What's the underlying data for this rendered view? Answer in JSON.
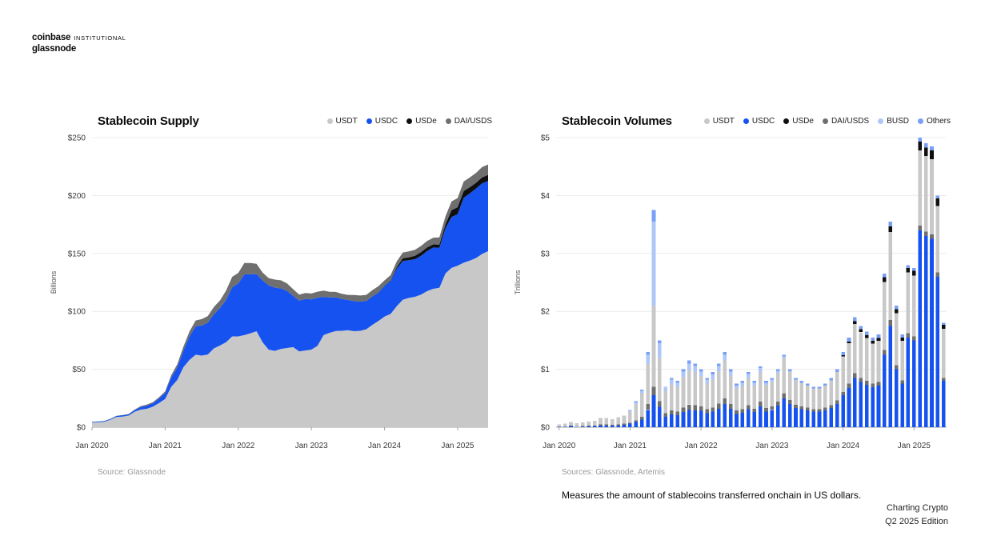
{
  "brand": {
    "line1_primary": "coinbase",
    "line1_secondary": "INSTITUTIONAL",
    "line2": "glassnode"
  },
  "edition": {
    "line1": "Charting Crypto",
    "line2": "Q2 2025 Edition"
  },
  "colors": {
    "USDT": "#c8c8c8",
    "USDC": "#1652f0",
    "USDe": "#0f0f0f",
    "DAI/USDS": "#6f6f6f",
    "BUSD": "#aec7f8",
    "Others": "#78a0f5",
    "grid": "#ececec",
    "zero_line": "#a3a3a3",
    "axis_text": "#3a3a3a",
    "source_text": "#9a9a9a"
  },
  "months": [
    "2020-01",
    "2020-02",
    "2020-03",
    "2020-04",
    "2020-05",
    "2020-06",
    "2020-07",
    "2020-08",
    "2020-09",
    "2020-10",
    "2020-11",
    "2020-12",
    "2021-01",
    "2021-02",
    "2021-03",
    "2021-04",
    "2021-05",
    "2021-06",
    "2021-07",
    "2021-08",
    "2021-09",
    "2021-10",
    "2021-11",
    "2021-12",
    "2022-01",
    "2022-02",
    "2022-03",
    "2022-04",
    "2022-05",
    "2022-06",
    "2022-07",
    "2022-08",
    "2022-09",
    "2022-10",
    "2022-11",
    "2022-12",
    "2023-01",
    "2023-02",
    "2023-03",
    "2023-04",
    "2023-05",
    "2023-06",
    "2023-07",
    "2023-08",
    "2023-09",
    "2023-10",
    "2023-11",
    "2023-12",
    "2024-01",
    "2024-02",
    "2024-03",
    "2024-04",
    "2024-05",
    "2024-06",
    "2024-07",
    "2024-08",
    "2024-09",
    "2024-10",
    "2024-11",
    "2024-12",
    "2025-01",
    "2025-02",
    "2025-03",
    "2025-04",
    "2025-05",
    "2025-06"
  ],
  "chart_data": [
    {
      "type": "area",
      "title": "Stablecoin Supply",
      "ylabel": "Billions",
      "source": "Source: Glassnode",
      "ylim": [
        0,
        250
      ],
      "yticks": [
        "$0",
        "$50",
        "$100",
        "$150",
        "$200",
        "$250"
      ],
      "xticks": [
        "Jan 2020",
        "Jan 2021",
        "Jan 2022",
        "Jan 2023",
        "Jan 2024",
        "Jan 2025"
      ],
      "x_key": "months",
      "x_interval": "monthly",
      "legend": [
        "USDT",
        "USDC",
        "USDe",
        "DAI/USDS"
      ],
      "stack_order": [
        "USDT",
        "USDC",
        "USDe",
        "DAI/USDS"
      ],
      "grid": true,
      "legend_position": "top-right",
      "series": [
        {
          "name": "USDT",
          "values": [
            4.0,
            4.3,
            4.6,
            6.4,
            8.8,
            9.2,
            10.0,
            13.4,
            15.2,
            15.9,
            17.8,
            20.9,
            24.4,
            34.9,
            40.8,
            51.8,
            58.1,
            62.6,
            61.8,
            62.8,
            68.0,
            70.5,
            73.4,
            78.4,
            78.4,
            79.5,
            81.1,
            82.9,
            73.3,
            66.9,
            65.9,
            67.6,
            68.4,
            69.1,
            65.4,
            66.2,
            67.0,
            70.3,
            79.5,
            81.5,
            83.1,
            83.2,
            83.8,
            82.9,
            83.2,
            84.5,
            88.3,
            91.7,
            95.5,
            97.8,
            104.4,
            110.1,
            111.6,
            112.6,
            114.4,
            117.5,
            119.5,
            120.3,
            132.8,
            137.5,
            139.4,
            142.0,
            143.8,
            146.0,
            149.5,
            152.0
          ]
        },
        {
          "name": "USDC",
          "values": [
            0.5,
            0.6,
            0.7,
            0.7,
            0.9,
            1.1,
            1.1,
            1.4,
            2.2,
            2.7,
            2.9,
            3.9,
            5.2,
            8.0,
            10.8,
            14.2,
            20.1,
            24.4,
            26.0,
            27.4,
            29.5,
            32.4,
            36.4,
            42.4,
            45.6,
            52.4,
            51.0,
            49.3,
            53.4,
            55.5,
            54.6,
            52.2,
            49.3,
            44.3,
            43.9,
            44.6,
            43.3,
            41.5,
            33.0,
            30.5,
            29.0,
            27.5,
            26.1,
            25.9,
            25.2,
            24.4,
            24.6,
            24.4,
            26.5,
            28.5,
            32.4,
            33.4,
            32.5,
            32.4,
            33.6,
            34.6,
            35.6,
            34.7,
            39.0,
            43.9,
            44.5,
            56.1,
            58.0,
            60.0,
            61.0,
            60.5
          ]
        },
        {
          "name": "USDe",
          "values": [
            0,
            0,
            0,
            0,
            0,
            0,
            0,
            0,
            0,
            0,
            0,
            0,
            0,
            0,
            0,
            0,
            0,
            0,
            0,
            0,
            0,
            0,
            0,
            0,
            0,
            0,
            0,
            0,
            0,
            0,
            0,
            0,
            0,
            0,
            0,
            0,
            0,
            0,
            0,
            0,
            0,
            0,
            0,
            0,
            0,
            0,
            0.1,
            0.3,
            0.3,
            0.4,
            1.4,
            2.3,
            2.6,
            3.0,
            3.2,
            3.1,
            2.7,
            2.7,
            3.3,
            5.9,
            6.0,
            5.8,
            5.4,
            4.9,
            5.2,
            5.3
          ]
        },
        {
          "name": "DAI/USDS",
          "values": [
            0.1,
            0.1,
            0.1,
            0.1,
            0.1,
            0.2,
            0.3,
            0.4,
            0.8,
            0.9,
            1.0,
            1.1,
            1.3,
            2.0,
            2.8,
            3.5,
            4.4,
            5.1,
            5.5,
            5.7,
            6.3,
            6.5,
            8.0,
            9.0,
            9.2,
            9.8,
            9.6,
            8.8,
            6.8,
            6.3,
            6.9,
            7.0,
            6.4,
            5.8,
            5.2,
            5.1,
            5.1,
            5.2,
            5.4,
            4.9,
            4.7,
            4.5,
            4.3,
            5.3,
            5.3,
            5.3,
            5.3,
            5.3,
            4.4,
            4.6,
            4.8,
            5.0,
            5.1,
            5.2,
            5.3,
            5.6,
            5.8,
            6.2,
            6.9,
            7.6,
            7.9,
            8.2,
            8.4,
            8.6,
            8.8,
            9.0
          ]
        }
      ]
    },
    {
      "type": "bar",
      "title": "Stablecoin Volumes",
      "ylabel": "Trillions",
      "source": "Sources: Glassnode, Artemis",
      "note": "Measures the amount of stablecoins transferred onchain in US dollars.",
      "ylim": [
        0,
        5
      ],
      "yticks": [
        "$0",
        "$1",
        "$2",
        "$3",
        "$4",
        "$5"
      ],
      "xticks": [
        "Jan 2020",
        "Jan 2021",
        "Jan 2022",
        "Jan 2023",
        "Jan 2024",
        "Jan 2025"
      ],
      "x_key": "months",
      "x_interval": "monthly",
      "legend": [
        "USDT",
        "USDC",
        "USDe",
        "DAI/USDS",
        "BUSD",
        "Others"
      ],
      "stack_order": [
        "USDC",
        "DAI/USDS",
        "USDT",
        "USDe",
        "BUSD",
        "Others"
      ],
      "grid": true,
      "legend_position": "top-right",
      "series": [
        {
          "name": "USDC",
          "values": [
            0.01,
            0.01,
            0.02,
            0.01,
            0.01,
            0.02,
            0.02,
            0.03,
            0.03,
            0.03,
            0.03,
            0.04,
            0.06,
            0.09,
            0.13,
            0.3,
            0.55,
            0.35,
            0.18,
            0.22,
            0.21,
            0.26,
            0.3,
            0.29,
            0.28,
            0.24,
            0.27,
            0.32,
            0.4,
            0.32,
            0.23,
            0.25,
            0.31,
            0.26,
            0.36,
            0.27,
            0.3,
            0.37,
            0.5,
            0.4,
            0.33,
            0.31,
            0.29,
            0.27,
            0.27,
            0.29,
            0.33,
            0.4,
            0.55,
            0.68,
            0.85,
            0.78,
            0.73,
            0.69,
            0.72,
            1.25,
            1.75,
            1.0,
            0.75,
            1.55,
            1.5,
            3.4,
            3.3,
            3.25,
            2.6,
            0.8
          ]
        },
        {
          "name": "DAI/USDS",
          "values": [
            0.0,
            0.0,
            0.01,
            0.0,
            0.01,
            0.01,
            0.01,
            0.02,
            0.02,
            0.01,
            0.02,
            0.02,
            0.02,
            0.03,
            0.05,
            0.1,
            0.15,
            0.1,
            0.06,
            0.07,
            0.06,
            0.08,
            0.09,
            0.09,
            0.08,
            0.07,
            0.07,
            0.09,
            0.1,
            0.08,
            0.06,
            0.06,
            0.07,
            0.06,
            0.08,
            0.06,
            0.06,
            0.07,
            0.09,
            0.07,
            0.06,
            0.05,
            0.05,
            0.04,
            0.04,
            0.05,
            0.05,
            0.06,
            0.06,
            0.07,
            0.08,
            0.07,
            0.07,
            0.06,
            0.06,
            0.08,
            0.1,
            0.07,
            0.06,
            0.07,
            0.07,
            0.08,
            0.08,
            0.08,
            0.07,
            0.05
          ]
        },
        {
          "name": "USDT",
          "values": [
            0.04,
            0.05,
            0.06,
            0.06,
            0.06,
            0.07,
            0.08,
            0.11,
            0.11,
            0.1,
            0.12,
            0.14,
            0.19,
            0.28,
            0.4,
            0.7,
            1.4,
            0.75,
            0.38,
            0.45,
            0.43,
            0.53,
            0.6,
            0.58,
            0.52,
            0.44,
            0.49,
            0.56,
            0.65,
            0.49,
            0.38,
            0.4,
            0.47,
            0.4,
            0.51,
            0.4,
            0.43,
            0.5,
            0.6,
            0.48,
            0.42,
            0.4,
            0.38,
            0.36,
            0.36,
            0.38,
            0.43,
            0.49,
            0.61,
            0.7,
            0.85,
            0.79,
            0.74,
            0.69,
            0.71,
            1.18,
            1.52,
            0.9,
            0.68,
            1.05,
            1.05,
            1.3,
            1.3,
            1.3,
            1.15,
            0.85
          ]
        },
        {
          "name": "USDe",
          "values": [
            0,
            0,
            0,
            0,
            0,
            0,
            0,
            0,
            0,
            0,
            0,
            0,
            0,
            0,
            0,
            0,
            0,
            0,
            0,
            0,
            0,
            0,
            0,
            0,
            0,
            0,
            0,
            0,
            0,
            0,
            0,
            0,
            0,
            0,
            0,
            0,
            0,
            0,
            0,
            0,
            0,
            0,
            0,
            0,
            0,
            0,
            0,
            0,
            0.02,
            0.03,
            0.05,
            0.05,
            0.05,
            0.05,
            0.05,
            0.08,
            0.1,
            0.07,
            0.06,
            0.08,
            0.08,
            0.15,
            0.15,
            0.15,
            0.13,
            0.07
          ]
        },
        {
          "name": "BUSD",
          "values": [
            0,
            0,
            0,
            0,
            0,
            0,
            0,
            0,
            0,
            0,
            0,
            0,
            0.02,
            0.03,
            0.05,
            0.15,
            1.45,
            0.25,
            0.06,
            0.08,
            0.07,
            0.09,
            0.11,
            0.1,
            0.08,
            0.07,
            0.08,
            0.09,
            0.1,
            0.07,
            0.05,
            0.06,
            0.07,
            0.05,
            0.07,
            0.04,
            0.03,
            0.03,
            0.03,
            0.02,
            0.01,
            0.01,
            0.0,
            0.0,
            0.0,
            0.0,
            0.0,
            0.0,
            0,
            0,
            0,
            0,
            0,
            0,
            0,
            0,
            0,
            0,
            0,
            0,
            0,
            0,
            0,
            0,
            0,
            0
          ]
        },
        {
          "name": "Others",
          "values": [
            0,
            0,
            0,
            0,
            0,
            0,
            0,
            0,
            0,
            0,
            0,
            0,
            0.01,
            0.02,
            0.02,
            0.05,
            0.2,
            0.05,
            0.02,
            0.03,
            0.03,
            0.04,
            0.05,
            0.04,
            0.04,
            0.03,
            0.04,
            0.04,
            0.05,
            0.04,
            0.03,
            0.03,
            0.03,
            0.03,
            0.03,
            0.03,
            0.03,
            0.03,
            0.03,
            0.03,
            0.03,
            0.03,
            0.03,
            0.03,
            0.03,
            0.03,
            0.04,
            0.05,
            0.06,
            0.07,
            0.07,
            0.06,
            0.06,
            0.06,
            0.06,
            0.06,
            0.08,
            0.06,
            0.05,
            0.05,
            0.05,
            0.07,
            0.07,
            0.07,
            0.05,
            0.03
          ]
        }
      ]
    }
  ]
}
